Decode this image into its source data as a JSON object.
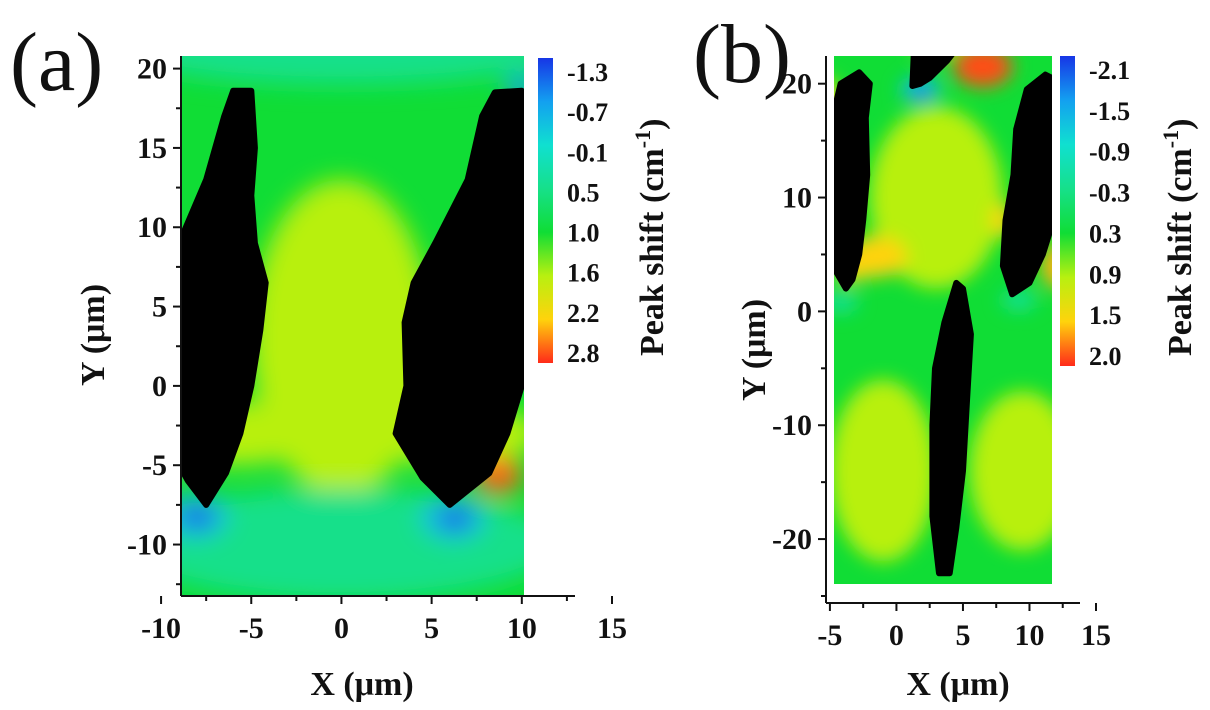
{
  "chart_data": [
    {
      "panel": "(a)",
      "type": "heatmap",
      "title": "",
      "xlabel": "X (μm)",
      "ylabel": "Y (μm)",
      "xlim": [
        -12,
        15
      ],
      "ylim": [
        -14,
        23
      ],
      "x_ticks": [
        -10,
        -5,
        0,
        5,
        10,
        15
      ],
      "y_ticks": [
        -10,
        -5,
        0,
        5,
        10,
        15,
        20
      ],
      "map_extent": {
        "x": [
          -11.5,
          11.2
        ],
        "y": [
          -13.5,
          22.5
        ]
      },
      "background_level": 1.0,
      "colorbar": {
        "title": "Peak shift (cm",
        "title_sup": "-1",
        "title_close": ")",
        "ticks": [
          "-1.3",
          "-0.7",
          "-0.1",
          "0.5",
          "1.0",
          "1.6",
          "2.2",
          "2.8"
        ],
        "colors": [
          "#1736e6",
          "#13a0f0",
          "#10e0d0",
          "#16e08a",
          "#10dd35",
          "#b8f010",
          "#ffd30c",
          "#ff2b1a"
        ]
      },
      "regions": [
        {
          "kind": "blob",
          "level": 1.6,
          "cx": 0,
          "cy": 3,
          "rx": 5,
          "ry": 10
        },
        {
          "kind": "blob",
          "level": 1.6,
          "cx": -6,
          "cy": -3,
          "rx": 5,
          "ry": 2
        },
        {
          "kind": "blob",
          "level": 1.6,
          "cx": 6,
          "cy": -3,
          "rx": 5,
          "ry": 2
        },
        {
          "kind": "blob",
          "level": 0.5,
          "cx": 0,
          "cy": -10,
          "rx": 12,
          "ry": 3.5
        },
        {
          "kind": "blob",
          "level": 0.5,
          "cx": 0,
          "cy": 21,
          "rx": 12,
          "ry": 2
        },
        {
          "kind": "blob",
          "level": -0.4,
          "cx": -8.1,
          "cy": -8.2,
          "rx": 1.8,
          "ry": 1.4
        },
        {
          "kind": "blob",
          "level": -0.4,
          "cx": 6.2,
          "cy": -8.3,
          "rx": 1.8,
          "ry": 1.4
        },
        {
          "kind": "blob",
          "level": -1.3,
          "cx": -8.0,
          "cy": -8.3,
          "rx": 0.9,
          "ry": 0.6
        },
        {
          "kind": "blob",
          "level": -1.3,
          "cx": 6.3,
          "cy": -8.4,
          "rx": 0.9,
          "ry": 0.6
        },
        {
          "kind": "blob",
          "level": -0.7,
          "cx": 10.0,
          "cy": 18.8,
          "rx": 0.9,
          "ry": 0.8
        },
        {
          "kind": "blob",
          "level": 2.5,
          "cx": -9.5,
          "cy": -4.3,
          "rx": 1.0,
          "ry": 0.8
        },
        {
          "kind": "blob",
          "level": 2.6,
          "cx": 8.7,
          "cy": -5.6,
          "rx": 1.3,
          "ry": 1.2
        },
        {
          "kind": "mask",
          "points": [
            [
              -7.5,
              -7.5
            ],
            [
              -8.5,
              -6.0
            ],
            [
              -10.0,
              -3.0
            ],
            [
              -10.3,
              0.5
            ],
            [
              -10.0,
              5.0
            ],
            [
              -9.0,
              9.0
            ],
            [
              -7.5,
              13.0
            ],
            [
              -6.5,
              17.0
            ],
            [
              -6.0,
              18.6
            ],
            [
              -5.0,
              18.6
            ],
            [
              -4.8,
              15.0
            ],
            [
              -5.0,
              12.0
            ],
            [
              -4.8,
              9.0
            ],
            [
              -4.2,
              6.5
            ],
            [
              -4.5,
              3.5
            ],
            [
              -5.0,
              0.0
            ],
            [
              -5.6,
              -3.0
            ],
            [
              -6.4,
              -5.5
            ]
          ]
        },
        {
          "kind": "mask",
          "points": [
            [
              6.0,
              -7.5
            ],
            [
              4.5,
              -5.8
            ],
            [
              3.0,
              -3.0
            ],
            [
              3.6,
              0.0
            ],
            [
              3.5,
              4.0
            ],
            [
              4.0,
              6.5
            ],
            [
              5.2,
              9.0
            ],
            [
              7.0,
              13.0
            ],
            [
              7.8,
              17.0
            ],
            [
              8.5,
              18.5
            ],
            [
              10.0,
              18.6
            ],
            [
              10.5,
              17.5
            ],
            [
              11.0,
              14.0
            ],
            [
              11.0,
              9.5
            ],
            [
              11.2,
              6.5
            ],
            [
              10.8,
              4.0
            ],
            [
              10.0,
              0.0
            ],
            [
              9.2,
              -3.0
            ],
            [
              8.2,
              -5.5
            ]
          ]
        }
      ]
    },
    {
      "panel": "(b)",
      "type": "heatmap",
      "title": "",
      "xlabel": "X (μm)",
      "ylabel": "Y (μm)",
      "xlim": [
        -8,
        15
      ],
      "ylim": [
        -25,
        27
      ],
      "x_ticks": [
        -5,
        0,
        5,
        10,
        15
      ],
      "y_ticks": [
        -20,
        -10,
        0,
        10,
        20
      ],
      "map_extent": {
        "x": [
          -7,
          13.2
        ],
        "y": [
          -24.5,
          26.5
        ]
      },
      "background_level": 0.3,
      "colorbar": {
        "title": "Peak shift (cm",
        "title_sup": "-1",
        "title_close": ")",
        "ticks": [
          "-2.1",
          "-1.5",
          "-0.9",
          "-0.3",
          "0.3",
          "0.9",
          "1.5",
          "2.0"
        ],
        "colors": [
          "#1736e6",
          "#13a0f0",
          "#10e0d0",
          "#16e08a",
          "#10dd35",
          "#b8f010",
          "#ffd30c",
          "#ff2b1a"
        ]
      },
      "regions": [
        {
          "kind": "blob",
          "level": 0.9,
          "cx": 3,
          "cy": 10,
          "rx": 5,
          "ry": 8
        },
        {
          "kind": "blob",
          "level": 0.9,
          "cx": -1,
          "cy": -14,
          "rx": 4,
          "ry": 8
        },
        {
          "kind": "blob",
          "level": 0.9,
          "cx": 9.5,
          "cy": -14,
          "rx": 4,
          "ry": 7
        },
        {
          "kind": "blob",
          "level": 1.3,
          "cx": -5.5,
          "cy": 18,
          "rx": 1.4,
          "ry": 2.5
        },
        {
          "kind": "blob",
          "level": 1.5,
          "cx": -1.6,
          "cy": 4.8,
          "rx": 2.4,
          "ry": 1.8
        },
        {
          "kind": "blob",
          "level": 1.5,
          "cx": -3.3,
          "cy": 3.8,
          "rx": 1.3,
          "ry": 1.2
        },
        {
          "kind": "blob",
          "level": 1.6,
          "cx": 12.2,
          "cy": 4,
          "rx": 1.3,
          "ry": 2.0
        },
        {
          "kind": "blob",
          "level": 1.5,
          "cx": 8.0,
          "cy": 8,
          "rx": 0.8,
          "ry": 1.5
        },
        {
          "kind": "blob",
          "level": 1.5,
          "cx": 3,
          "cy": 24,
          "rx": 1.8,
          "ry": 1.6
        },
        {
          "kind": "blob",
          "level": 1.9,
          "cx": 6.5,
          "cy": 21.5,
          "rx": 2.2,
          "ry": 1.8
        },
        {
          "kind": "blob",
          "level": -0.4,
          "cx": -4.2,
          "cy": 0.8,
          "rx": 1.3,
          "ry": 0.9
        },
        {
          "kind": "blob",
          "level": -0.4,
          "cx": 9.2,
          "cy": 1.0,
          "rx": 1.3,
          "ry": 0.9
        },
        {
          "kind": "blob",
          "level": -1.2,
          "cx": 1.8,
          "cy": 19.5,
          "rx": 1.5,
          "ry": 1.1
        },
        {
          "kind": "blob",
          "level": -2.0,
          "cx": 1.9,
          "cy": 19.1,
          "rx": 0.6,
          "ry": 0.5
        },
        {
          "kind": "mask",
          "points": [
            [
              -3.8,
              2.0
            ],
            [
              -4.8,
              4.0
            ],
            [
              -5.2,
              8.0
            ],
            [
              -5.0,
              14.0
            ],
            [
              -4.6,
              18.0
            ],
            [
              -4.2,
              20.0
            ],
            [
              -2.8,
              21.0
            ],
            [
              -2.0,
              20.0
            ],
            [
              -2.3,
              17.0
            ],
            [
              -2.2,
              12.0
            ],
            [
              -2.5,
              8.0
            ],
            [
              -2.8,
              5.0
            ],
            [
              -3.3,
              2.8
            ]
          ]
        },
        {
          "kind": "mask",
          "points": [
            [
              1.2,
              19.8
            ],
            [
              1.3,
              22.5
            ],
            [
              2.5,
              24.5
            ],
            [
              4.0,
              26.0
            ],
            [
              5.5,
              27.0
            ],
            [
              5.5,
              25.0
            ],
            [
              4.8,
              23.5
            ],
            [
              3.8,
              22.0
            ],
            [
              2.5,
              20.5
            ],
            [
              1.8,
              20.0
            ]
          ]
        },
        {
          "kind": "mask",
          "points": [
            [
              8.7,
              1.5
            ],
            [
              8.0,
              4.0
            ],
            [
              8.2,
              8.0
            ],
            [
              8.8,
              12.0
            ],
            [
              9.0,
              16.0
            ],
            [
              9.8,
              19.5
            ],
            [
              11.2,
              20.8
            ],
            [
              12.5,
              20.0
            ],
            [
              13.0,
              16.0
            ],
            [
              12.5,
              12.0
            ],
            [
              11.8,
              8.0
            ],
            [
              11.0,
              5.0
            ],
            [
              10.0,
              2.5
            ]
          ]
        },
        {
          "kind": "mask",
          "points": [
            [
              3.2,
              -23.0
            ],
            [
              2.7,
              -18.0
            ],
            [
              2.7,
              -10.0
            ],
            [
              2.9,
              -5.0
            ],
            [
              3.6,
              -1.0
            ],
            [
              4.5,
              2.5
            ],
            [
              5.0,
              2.0
            ],
            [
              5.6,
              -2.0
            ],
            [
              5.3,
              -8.0
            ],
            [
              5.0,
              -14.0
            ],
            [
              4.5,
              -19.0
            ],
            [
              4.0,
              -23.0
            ]
          ]
        }
      ]
    }
  ]
}
